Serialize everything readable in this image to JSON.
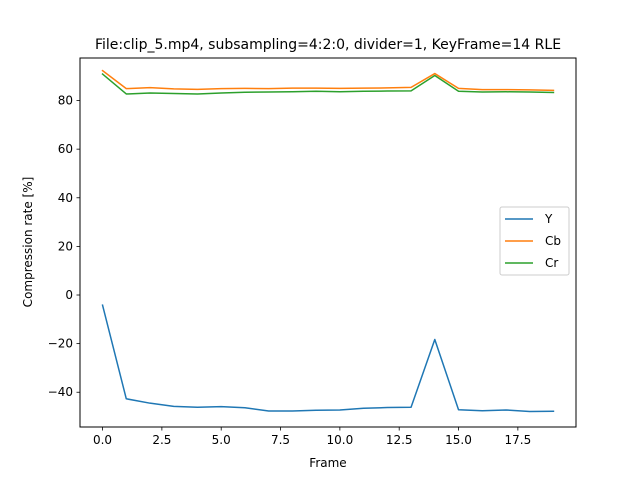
{
  "chart_data": {
    "type": "line",
    "title": "File:clip_5.mp4, subsampling=4:2:0, divider=1, KeyFrame=14 RLE",
    "xlabel": "Frame",
    "ylabel": "Compression rate [%]",
    "xlim": [
      -0.95,
      19.95
    ],
    "ylim": [
      -54.3,
      97.5
    ],
    "xticks": [
      0.0,
      2.5,
      5.0,
      7.5,
      10.0,
      12.5,
      15.0,
      17.5
    ],
    "xtick_labels": [
      "0.0",
      "2.5",
      "5.0",
      "7.5",
      "10.0",
      "12.5",
      "15.0",
      "17.5"
    ],
    "yticks": [
      -40,
      -20,
      0,
      20,
      40,
      60,
      80
    ],
    "ytick_labels": [
      "−40",
      "−20",
      "0",
      "20",
      "40",
      "60",
      "80"
    ],
    "grid": false,
    "legend_position": "center-right",
    "x": [
      0,
      1,
      2,
      3,
      4,
      5,
      6,
      7,
      8,
      9,
      10,
      11,
      12,
      13,
      14,
      15,
      16,
      17,
      18,
      19
    ],
    "series": [
      {
        "name": "Y",
        "color": "#1f77b4",
        "values": [
          -4.2,
          -42.7,
          -44.5,
          -45.8,
          -46.2,
          -45.9,
          -46.4,
          -47.7,
          -47.7,
          -47.4,
          -47.3,
          -46.6,
          -46.3,
          -46.2,
          -18.3,
          -47.2,
          -47.6,
          -47.3,
          -47.9,
          -47.8
        ]
      },
      {
        "name": "Cb",
        "color": "#ff7f0e",
        "values": [
          92.3,
          84.9,
          85.3,
          84.8,
          84.6,
          84.9,
          85.0,
          84.9,
          85.1,
          85.1,
          85.0,
          85.1,
          85.2,
          85.4,
          91.1,
          85.0,
          84.5,
          84.5,
          84.4,
          84.2
        ]
      },
      {
        "name": "Cr",
        "color": "#2ca02c",
        "values": [
          90.9,
          82.7,
          83.1,
          82.9,
          82.7,
          83.1,
          83.4,
          83.5,
          83.6,
          83.8,
          83.6,
          83.8,
          83.9,
          84.0,
          90.3,
          83.8,
          83.5,
          83.6,
          83.5,
          83.3
        ]
      }
    ]
  }
}
